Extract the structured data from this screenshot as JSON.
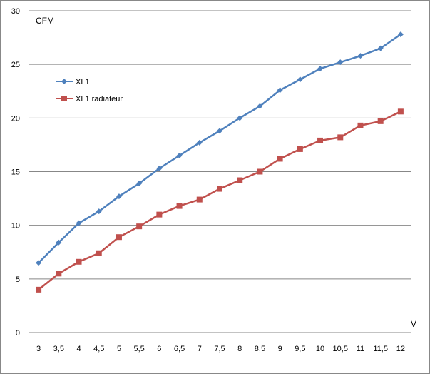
{
  "chart_data": {
    "type": "line",
    "title": "",
    "ylabel": "CFM",
    "xlabel": "V",
    "ylim": [
      0,
      30
    ],
    "y_ticks": [
      "0",
      "5",
      "10",
      "15",
      "20",
      "25",
      "30"
    ],
    "categories": [
      "3",
      "3,5",
      "4",
      "4,5",
      "5",
      "5,5",
      "6",
      "6,5",
      "7",
      "7,5",
      "8",
      "8,5",
      "9",
      "9,5",
      "10",
      "10,5",
      "11",
      "11,5",
      "12"
    ],
    "grid": true,
    "legend_position": "top-left",
    "series": [
      {
        "name": "XL1",
        "color": "#4F81BD",
        "marker": "diamond",
        "values": [
          6.5,
          8.4,
          10.2,
          11.3,
          12.7,
          13.9,
          15.3,
          16.5,
          17.7,
          18.8,
          20.0,
          21.1,
          22.6,
          23.6,
          24.6,
          25.2,
          25.8,
          26.5,
          27.8
        ]
      },
      {
        "name": "XL1 radiateur",
        "color": "#C0504D",
        "marker": "square",
        "values": [
          4.0,
          5.5,
          6.6,
          7.4,
          8.9,
          9.9,
          11.0,
          11.8,
          12.4,
          13.4,
          14.2,
          15.0,
          16.2,
          17.1,
          17.9,
          18.2,
          19.3,
          19.7,
          20.6
        ]
      }
    ]
  }
}
